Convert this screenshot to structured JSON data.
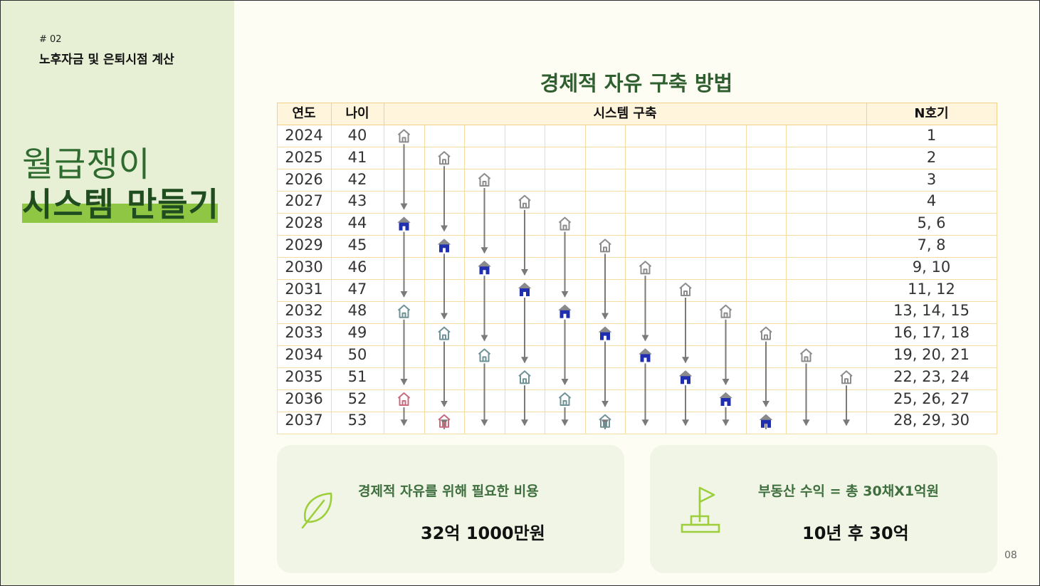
{
  "section": {
    "number": "# 02",
    "title": "노후자금 및 은퇴시점 계산"
  },
  "hero": {
    "line1": "월급쟁이",
    "line2": "시스템 만들기"
  },
  "main_title": "경제적 자유 구축 방법",
  "table": {
    "headers": {
      "year": "연도",
      "age": "나이",
      "system": "시스템 구축",
      "n": "N호기"
    },
    "rows": [
      {
        "year": "2024",
        "age": "40",
        "n": "1"
      },
      {
        "year": "2025",
        "age": "41",
        "n": "2"
      },
      {
        "year": "2026",
        "age": "42",
        "n": "3"
      },
      {
        "year": "2027",
        "age": "43",
        "n": "4"
      },
      {
        "year": "2028",
        "age": "44",
        "n": "5, 6"
      },
      {
        "year": "2029",
        "age": "45",
        "n": "7, 8"
      },
      {
        "year": "2030",
        "age": "46",
        "n": "9, 10"
      },
      {
        "year": "2031",
        "age": "47",
        "n": "11, 12"
      },
      {
        "year": "2032",
        "age": "48",
        "n": "13, 14, 15"
      },
      {
        "year": "2033",
        "age": "49",
        "n": "16, 17, 18"
      },
      {
        "year": "2034",
        "age": "50",
        "n": "19, 20, 21"
      },
      {
        "year": "2035",
        "age": "51",
        "n": "22, 23, 24"
      },
      {
        "year": "2036",
        "age": "52",
        "n": "25, 26, 27"
      },
      {
        "year": "2037",
        "age": "53",
        "n": "28, 29, 30"
      }
    ],
    "house_icon": "house-icon",
    "house_colors": {
      "outline": "#8c8c8c",
      "blue": "#1f2fb0",
      "teal": "#6f9297",
      "pink": "#c96b7d"
    },
    "houses": [
      {
        "col": 0,
        "row": 0,
        "kind": "outline"
      },
      {
        "col": 0,
        "row": 4,
        "kind": "blue"
      },
      {
        "col": 0,
        "row": 8,
        "kind": "teal"
      },
      {
        "col": 0,
        "row": 12,
        "kind": "pink"
      },
      {
        "col": 1,
        "row": 1,
        "kind": "outline"
      },
      {
        "col": 1,
        "row": 5,
        "kind": "blue"
      },
      {
        "col": 1,
        "row": 9,
        "kind": "teal"
      },
      {
        "col": 1,
        "row": 13,
        "kind": "pink"
      },
      {
        "col": 2,
        "row": 2,
        "kind": "outline"
      },
      {
        "col": 2,
        "row": 6,
        "kind": "blue"
      },
      {
        "col": 2,
        "row": 10,
        "kind": "teal"
      },
      {
        "col": 3,
        "row": 3,
        "kind": "outline"
      },
      {
        "col": 3,
        "row": 7,
        "kind": "blue"
      },
      {
        "col": 3,
        "row": 11,
        "kind": "teal"
      },
      {
        "col": 4,
        "row": 4,
        "kind": "outline"
      },
      {
        "col": 4,
        "row": 8,
        "kind": "blue"
      },
      {
        "col": 4,
        "row": 12,
        "kind": "teal"
      },
      {
        "col": 5,
        "row": 5,
        "kind": "outline"
      },
      {
        "col": 5,
        "row": 9,
        "kind": "blue"
      },
      {
        "col": 5,
        "row": 13,
        "kind": "teal"
      },
      {
        "col": 6,
        "row": 6,
        "kind": "outline"
      },
      {
        "col": 6,
        "row": 10,
        "kind": "blue"
      },
      {
        "col": 7,
        "row": 7,
        "kind": "outline"
      },
      {
        "col": 7,
        "row": 11,
        "kind": "blue"
      },
      {
        "col": 8,
        "row": 8,
        "kind": "outline"
      },
      {
        "col": 8,
        "row": 12,
        "kind": "blue"
      },
      {
        "col": 9,
        "row": 9,
        "kind": "outline"
      },
      {
        "col": 9,
        "row": 13,
        "kind": "blue"
      },
      {
        "col": 10,
        "row": 10,
        "kind": "outline"
      },
      {
        "col": 11,
        "row": 11,
        "kind": "outline"
      }
    ]
  },
  "cards": [
    {
      "icon": "leaf-icon",
      "label": "경제적 자유를 위해 필요한 비용",
      "value": "32억 1000만원"
    },
    {
      "icon": "flag-icon",
      "label": "부동산 수익 = 총 30채X1억원",
      "value": "10년 후 30억"
    }
  ],
  "page_number": "08"
}
